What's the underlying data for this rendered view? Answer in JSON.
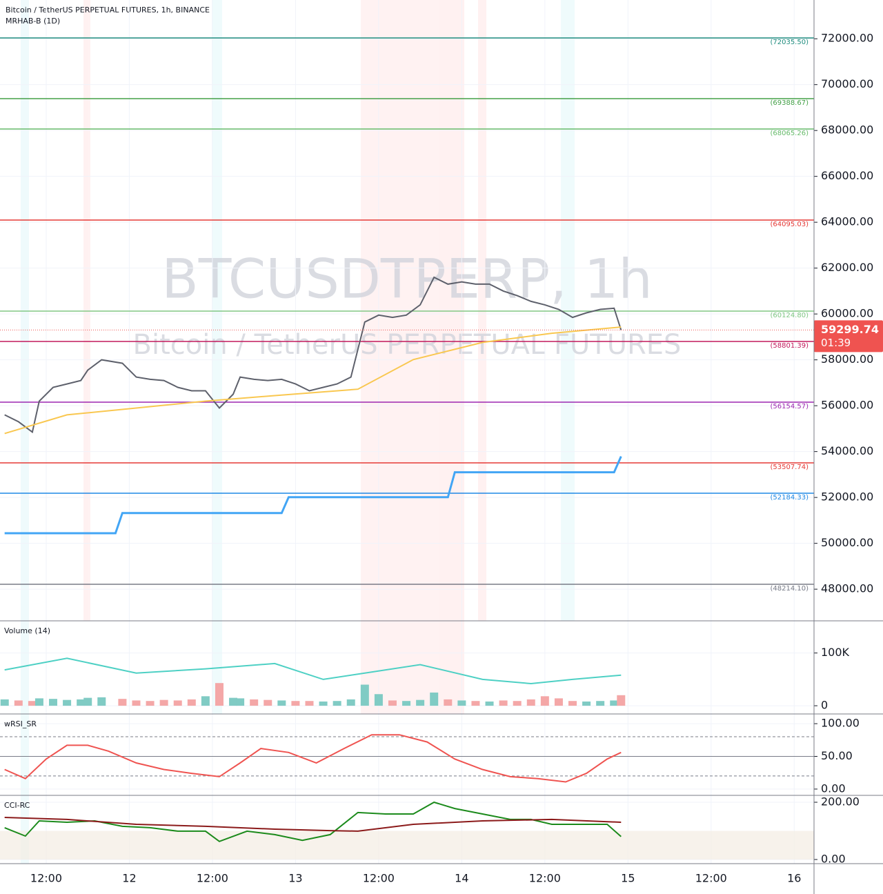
{
  "header": {
    "title": "Bitcoin / TetherUS PERPETUAL FUTURES, 1h, BINANCE",
    "indicator": "MRHAB-B (1D)"
  },
  "chart_data": [
    {
      "type": "line",
      "title": "BTCUSDTPERP, 1h",
      "subtitle": "Bitcoin / TetherUS PERPETUAL FUTURES",
      "xlim": [
        5.33,
        122.86
      ],
      "xticks": [
        {
          "value": 12,
          "label": "12:00"
        },
        {
          "value": 24,
          "label": "12"
        },
        {
          "value": 36,
          "label": "12:00"
        },
        {
          "value": 48,
          "label": "13"
        },
        {
          "value": 60,
          "label": "12:00"
        },
        {
          "value": 72,
          "label": "14"
        },
        {
          "value": 84,
          "label": "12:00"
        },
        {
          "value": 96,
          "label": "15"
        },
        {
          "value": 108,
          "label": "12:00"
        },
        {
          "value": 120,
          "label": "16"
        }
      ],
      "ylim": [
        46620,
        73690
      ],
      "yticks": [
        {
          "value": 48000,
          "label": "48000.00"
        },
        {
          "value": 50000,
          "label": "50000.00"
        },
        {
          "value": 52000,
          "label": "52000.00"
        },
        {
          "value": 54000,
          "label": "54000.00"
        },
        {
          "value": 56000,
          "label": "56000.00"
        },
        {
          "value": 58000,
          "label": "58000.00"
        },
        {
          "value": 60000,
          "label": "60000.00"
        },
        {
          "value": 62000,
          "label": "62000.00"
        },
        {
          "value": 64000,
          "label": "64000.00"
        },
        {
          "value": 66000,
          "label": "66000.00"
        },
        {
          "value": 68000,
          "label": "68000.00"
        },
        {
          "value": 70000,
          "label": "70000.00"
        },
        {
          "value": 72000,
          "label": "72000.00"
        }
      ],
      "series": [
        {
          "color": "#5d606b",
          "x": [
            6,
            8,
            10,
            11,
            13,
            15,
            17,
            18,
            20,
            23,
            25,
            27,
            29,
            31,
            33,
            35,
            37,
            39,
            40,
            42,
            44,
            46,
            48,
            50,
            52,
            54,
            56,
            58,
            60,
            62,
            64,
            66,
            68,
            70,
            72,
            74,
            76,
            78,
            80,
            82,
            84,
            86,
            88,
            90,
            92,
            94,
            95
          ],
          "values": [
            55600,
            55300,
            54850,
            56200,
            56800,
            56950,
            57100,
            57550,
            58000,
            57850,
            57250,
            57150,
            57100,
            56800,
            56650,
            56650,
            55900,
            56500,
            57250,
            57150,
            57100,
            57150,
            56950,
            56650,
            56800,
            56950,
            57250,
            59650,
            59950,
            59850,
            59950,
            60400,
            61600,
            61300,
            61400,
            61300,
            61300,
            61000,
            60800,
            60550,
            60400,
            60200,
            59850,
            60050,
            60200,
            60250,
            59299.74
          ]
        },
        {
          "color": "#42a5f5",
          "x": [
            6,
            22,
            23,
            46,
            47,
            70,
            71,
            94,
            95
          ],
          "values": [
            50440,
            50440,
            51320,
            51320,
            52010,
            52010,
            53100,
            53100,
            53790
          ]
        },
        {
          "color": "#f9c74f",
          "x": [
            6,
            15,
            25,
            35,
            45,
            57,
            65,
            75,
            85,
            95
          ],
          "values": [
            54790,
            55600,
            55900,
            56200,
            56440,
            56720,
            58010,
            58760,
            59160,
            59430
          ]
        }
      ],
      "levels": [
        {
          "value": 72035.5,
          "label": "(72035.50)",
          "color": "#1e8c7e"
        },
        {
          "value": 69388.67,
          "label": "(69388.67)",
          "color": "#43a047"
        },
        {
          "value": 68065.26,
          "label": "(68065.26)",
          "color": "#66bb6a"
        },
        {
          "value": 64095.03,
          "label": "(64095.03)",
          "color": "#e53935"
        },
        {
          "value": 60124.8,
          "label": "(60124.80)",
          "color": "#81c784"
        },
        {
          "value": 58801.39,
          "label": "(58801.39)",
          "color": "#c2185b"
        },
        {
          "value": 56154.57,
          "label": "(56154.57)",
          "color": "#9c27b0"
        },
        {
          "value": 53507.74,
          "label": "(53507.74)",
          "color": "#e53935"
        },
        {
          "value": 52184.33,
          "label": "(52184.33)",
          "color": "#1e88e5"
        },
        {
          "value": 48214.1,
          "label": "(48214.10)",
          "color": "#787b86"
        }
      ],
      "last_price": {
        "value": 59299.74,
        "countdown": "01:39",
        "color": "#ef5350"
      }
    },
    {
      "type": "bar",
      "title": "Volume (14)",
      "ylim": [
        -15600,
        159700
      ],
      "yticks": [
        {
          "value": 100000,
          "label": "100K"
        },
        0
      ],
      "up_color": "#80cbc4",
      "down_color": "#f4a7a7",
      "values": [
        12000,
        10000,
        9000,
        14000,
        13000,
        11000,
        12000,
        15000,
        16000,
        13000,
        10000,
        9000,
        11000,
        10000,
        12000,
        18000,
        43000,
        15000,
        14000,
        12000,
        11000,
        10000,
        9000,
        9000,
        8000,
        9000,
        12000,
        40000,
        22000,
        10000,
        9000,
        11000,
        25000,
        12000,
        10000,
        9000,
        8000,
        10000,
        9000,
        12000,
        18000,
        14000,
        9000,
        8000,
        9000,
        10000,
        20000
      ],
      "series": [
        {
          "color": "#4dd0c4",
          "x": [
            6,
            15,
            25,
            35,
            45,
            52,
            58,
            66,
            75,
            82,
            88,
            95
          ],
          "values": [
            68000,
            90000,
            62000,
            70000,
            80000,
            50000,
            62000,
            78000,
            50000,
            42000,
            50000,
            58000
          ]
        }
      ]
    },
    {
      "type": "line",
      "title": "wRSI_SR",
      "ylim": [
        -9.6,
        113.8
      ],
      "yticks": [
        {
          "value": 100,
          "label": "100.00"
        },
        {
          "value": 50,
          "label": "50.00"
        },
        {
          "value": 0,
          "label": "0.00"
        }
      ],
      "dashed_levels": [
        80,
        20
      ],
      "series": [
        {
          "color": "#ef5350",
          "x": [
            6,
            9,
            12,
            15,
            18,
            21,
            25,
            29,
            33,
            37,
            40,
            43,
            47,
            51,
            55,
            59,
            63,
            67,
            71,
            75,
            79,
            83,
            87,
            90,
            93,
            95
          ],
          "values": [
            30,
            16,
            46,
            67,
            67,
            58,
            40,
            30,
            24,
            19,
            40,
            62,
            56,
            40,
            62,
            83,
            83,
            72,
            46,
            30,
            19,
            16,
            11,
            24,
            46,
            56
          ]
        }
      ]
    },
    {
      "type": "line",
      "title": "CCI-RC",
      "ylim": [
        -14.5,
        221.7
      ],
      "yticks": [
        {
          "value": 200,
          "label": "200.00"
        },
        {
          "value": 0,
          "label": "0.00"
        }
      ],
      "band": [
        0,
        100
      ],
      "series": [
        {
          "color": "#1b8a1b",
          "x": [
            6,
            9,
            11,
            15,
            19,
            23,
            27,
            31,
            35,
            37,
            41,
            45,
            49,
            53,
            57,
            61,
            65,
            68,
            71,
            75,
            79,
            82,
            85,
            89,
            93,
            95
          ],
          "values": [
            111,
            82,
            135,
            130,
            135,
            116,
            111,
            99,
            99,
            63,
            99,
            87,
            67,
            87,
            164,
            159,
            159,
            200,
            178,
            159,
            140,
            140,
            123,
            123,
            123,
            80
          ]
        },
        {
          "color": "#8b1a1a",
          "x": [
            6,
            15,
            25,
            35,
            45,
            53,
            57,
            65,
            75,
            85,
            95
          ],
          "values": [
            147,
            140,
            123,
            116,
            106,
            101,
            99,
            123,
            135,
            140,
            130
          ]
        }
      ]
    }
  ]
}
